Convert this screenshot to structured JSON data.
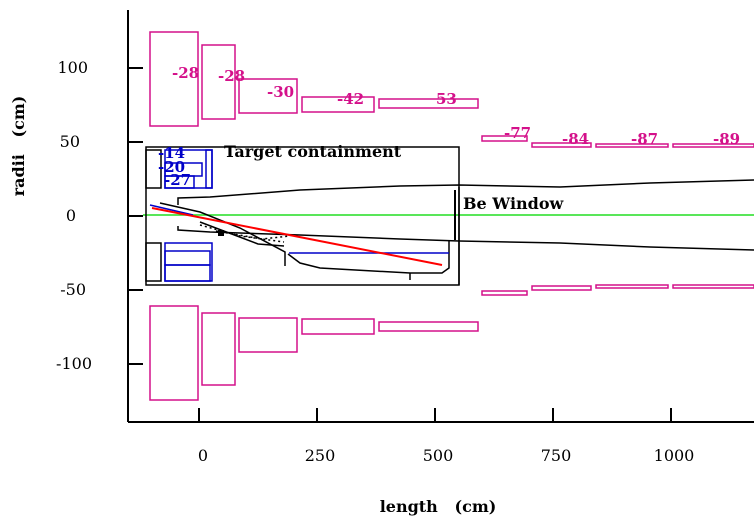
{
  "axes": {
    "xlabel": "length   (cm)",
    "ylabel": "radii   (cm)",
    "xticks": [
      "0",
      "250",
      "500",
      "750",
      "1000"
    ],
    "yticks": [
      "100",
      "50",
      "0",
      "-50",
      "-100"
    ]
  },
  "annotations": {
    "target": "Target containment",
    "window": "Be Window"
  },
  "magenta_labels": [
    "-28",
    "-28",
    "-30",
    "-42",
    "53",
    "-77",
    "-84",
    "-87",
    "-89"
  ],
  "blue_labels": [
    "-14",
    "-20",
    "-27"
  ],
  "colors": {
    "magnet": "#d4108a",
    "blue": "#0000c8",
    "beam": "#ff0000",
    "axis_line": "#22dd22",
    "outline": "#000000"
  }
}
